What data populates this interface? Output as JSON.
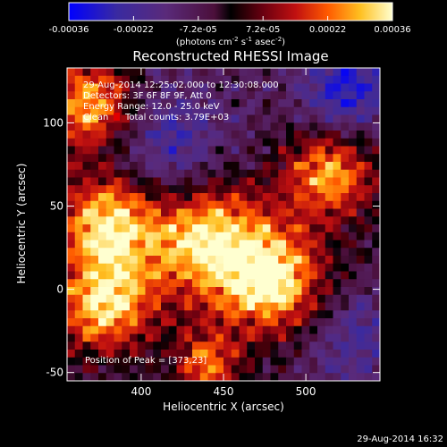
{
  "chart_data": {
    "type": "heatmap",
    "title": "Reconstructed RHESSI Image",
    "xlabel": "Heliocentric X (arcsec)",
    "ylabel": "Heliocentric Y (arcsec)",
    "xlim": [
      355,
      545
    ],
    "ylim": [
      -55,
      133
    ],
    "xticks": [
      400,
      450,
      500
    ],
    "yticks": [
      -50,
      0,
      50,
      100
    ],
    "annotations": [
      "29-Aug-2014 12:25:02.000 to 12:30:08.000",
      "Detectors: 3F 6F 8F 9F, Att 0",
      "Energy Range: 12.0 - 25.0 keV",
      "Clean",
      "Total counts: 3.79E+03"
    ],
    "peak_label": "Position of Peak = [373,23]",
    "colorbar": {
      "ticks": [
        "-0.00036",
        "-0.00022",
        "-7.2e-05",
        "7.2e-05",
        "0.00022",
        "0.00036"
      ],
      "range": [
        -0.00036,
        0.00036
      ],
      "label_main": "(photons cm",
      "label_sup1": "-2",
      "label_mid1": " s",
      "label_sup2": "-1",
      "label_mid2": " asec",
      "label_sup3": "-2",
      "label_end": ")"
    },
    "grid_size": [
      40,
      40
    ],
    "sources": [
      {
        "x": 370,
        "y": 110,
        "amp": 0.9,
        "sigma": 20
      },
      {
        "x": 380,
        "y": 40,
        "amp": 1.0,
        "sigma": 22
      },
      {
        "x": 378,
        "y": -10,
        "amp": 0.95,
        "sigma": 20
      },
      {
        "x": 440,
        "y": 30,
        "amp": 1.0,
        "sigma": 26
      },
      {
        "x": 480,
        "y": 5,
        "amp": 1.0,
        "sigma": 22
      },
      {
        "x": 515,
        "y": 70,
        "amp": 0.85,
        "sigma": 20
      },
      {
        "x": 440,
        "y": -45,
        "amp": 0.7,
        "sigma": 14
      },
      {
        "x": 415,
        "y": 85,
        "amp": -0.5,
        "sigma": 28
      },
      {
        "x": 525,
        "y": 120,
        "amp": -0.6,
        "sigma": 22
      },
      {
        "x": 530,
        "y": -30,
        "amp": -0.4,
        "sigma": 20
      }
    ]
  },
  "footer": {
    "timestamp": "29-Aug-2014 16:32"
  }
}
